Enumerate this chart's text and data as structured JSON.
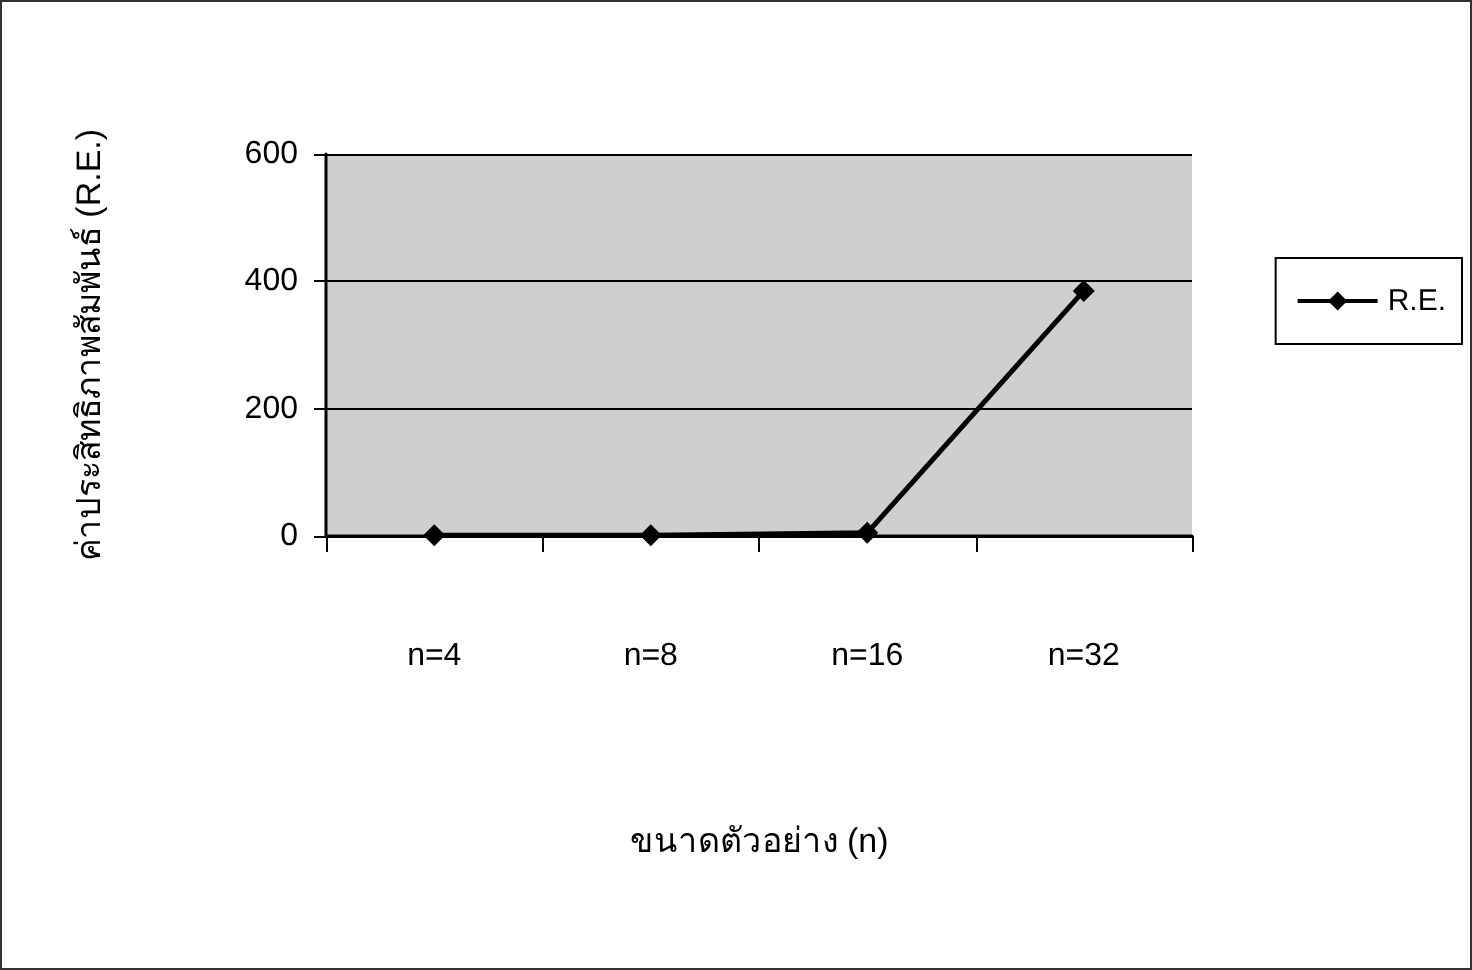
{
  "chart_data": {
    "type": "line",
    "xlabel": "ขนาดตัวอย่าง (n)",
    "ylabel": "ค่าประสิทธิภาพสัมพันธ์ (R.E.)",
    "categories": [
      "n=4",
      "n=8",
      "n=16",
      "n=32"
    ],
    "series": [
      {
        "name": "R.E.",
        "color": "#000000",
        "values": [
          1,
          1,
          5,
          385
        ]
      }
    ],
    "ylim": [
      0,
      600
    ],
    "yticks": [
      0,
      200,
      400,
      600
    ],
    "grid": "y",
    "legend": "right",
    "marker": "diamond",
    "line_style": "solid"
  }
}
